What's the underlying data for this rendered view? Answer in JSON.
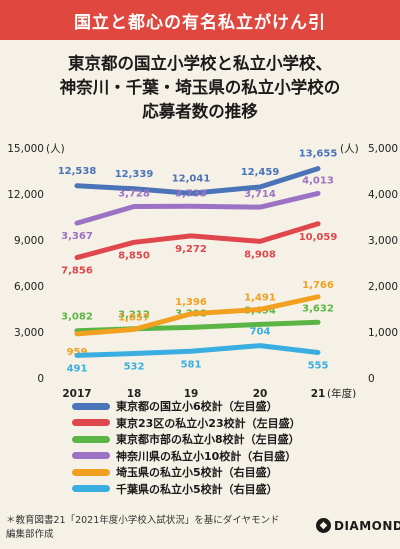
{
  "banner": {
    "text": "国立と都心の有名私立がけん引"
  },
  "title": {
    "line1": "東京都の国立小学校と私立小学校、",
    "line2": "神奈川・千葉・埼玉県の私立小学校の",
    "line3": "応募者数の推移"
  },
  "footnote": {
    "line1": "＊教育図書21「2021年度小学校入試状況」を基にダイヤモンド",
    "line2": "編集部作成"
  },
  "brand": {
    "name": "DIAMOND",
    "mark": "◆"
  },
  "chart_data": {
    "type": "line",
    "x": [
      "2017",
      "18",
      "19",
      "20",
      "21"
    ],
    "x_unit": "(年度)",
    "y_left": {
      "unit": "(人)",
      "range": [
        0,
        15000
      ],
      "ticks": [
        "0",
        "3,000",
        "6,000",
        "9,000",
        "12,000",
        "15,000"
      ]
    },
    "y_right": {
      "unit": "(人)",
      "range": [
        0,
        5000
      ],
      "ticks": [
        "0",
        "1,000",
        "2,000",
        "3,000",
        "4,000",
        "5,000"
      ]
    },
    "series": [
      {
        "name": "東京都の国立小6校計（左目盛）",
        "axis": "left",
        "color": "#4a73b8",
        "values": [
          12538,
          12339,
          12041,
          12459,
          13655
        ],
        "labels": [
          "12,538",
          "12,339",
          "12,041",
          "12,459",
          "13,655"
        ]
      },
      {
        "name": "東京23区の私立小23校計（左目盛）",
        "axis": "left",
        "color": "#e0474c",
        "values": [
          7856,
          8850,
          9272,
          8908,
          10059
        ],
        "labels": [
          "7,856",
          "8,850",
          "9,272",
          "8,908",
          "10,059"
        ]
      },
      {
        "name": "東京都市部の私立小8校計（左目盛）",
        "axis": "left",
        "color": "#5bb544",
        "values": [
          3082,
          3212,
          3298,
          3494,
          3632
        ],
        "labels": [
          "3,082",
          "3,212",
          "3,298",
          "3,494",
          "3,632"
        ]
      },
      {
        "name": "神奈川県の私立小10校計（右目盛）",
        "axis": "right",
        "color": "#9b72c4",
        "values": [
          3367,
          3728,
          3733,
          3714,
          4013
        ],
        "labels": [
          "3,367",
          "3,728",
          "3,733",
          "3,714",
          "4,013"
        ]
      },
      {
        "name": "埼玉県の私立小5校計（右目盛）",
        "axis": "right",
        "color": "#f2a01f",
        "values": [
          959,
          1057,
          1396,
          1491,
          1766
        ],
        "labels": [
          "959",
          "1,057",
          "1,396",
          "1,491",
          "1,766"
        ]
      },
      {
        "name": "千葉県の私立小5校計（右目盛）",
        "axis": "right",
        "color": "#3aaee0",
        "values": [
          491,
          532,
          581,
          704,
          555
        ],
        "labels": [
          "491",
          "532",
          "581",
          "704",
          "555"
        ]
      }
    ]
  }
}
